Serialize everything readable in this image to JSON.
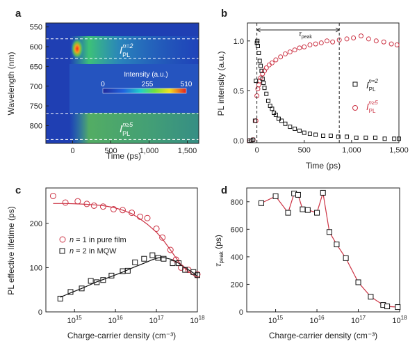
{
  "panels": {
    "a": {
      "label": "a"
    },
    "b": {
      "label": "b"
    },
    "c": {
      "label": "c"
    },
    "d": {
      "label": "d"
    }
  },
  "colors": {
    "red": "#cc3344",
    "black": "#111111",
    "heat_bg": "#1f3fb3"
  },
  "chart_data": [
    {
      "panel": "a",
      "type": "heatmap",
      "xlabel": "Time (ps)",
      "ylabel": "Wavelength (nm)",
      "xlim": [
        -350,
        1650
      ],
      "ylim": [
        540,
        845
      ],
      "x_ticks": [
        0,
        500,
        1000,
        1500
      ],
      "x_tick_labels": [
        "0",
        "500",
        "1,000",
        "1,500"
      ],
      "y_ticks": [
        550,
        600,
        650,
        700,
        750,
        800
      ],
      "y_tick_labels": [
        "550",
        "600",
        "650",
        "700",
        "750",
        "800"
      ],
      "dashed_lines_nm": [
        580,
        630,
        770,
        835
      ],
      "colorbar": {
        "title": "Intensity (a.u.)",
        "min": 0,
        "mid": 255,
        "max": 510,
        "tick_labels": [
          "0",
          "255",
          "510"
        ]
      },
      "band_labels": [
        {
          "main": "I",
          "sub": "PL",
          "sup": "n=2"
        },
        {
          "main": "I",
          "sub": "PL",
          "sup": "n≥5"
        }
      ]
    },
    {
      "panel": "b",
      "type": "scatter",
      "xlabel": "Time (ps)",
      "ylabel": "PL intensity (a.u.)",
      "xlim": [
        -100,
        1500
      ],
      "ylim": [
        -0.02,
        1.18
      ],
      "x_ticks": [
        0,
        500,
        1000,
        1500
      ],
      "x_tick_labels": [
        "0",
        "500",
        "1,000",
        "1,500"
      ],
      "y_ticks": [
        0.0,
        0.5,
        1.0
      ],
      "y_tick_labels": [
        "0.0",
        "0.5",
        "1.0"
      ],
      "tau_peak": {
        "label_main": "τ",
        "label_sub": "peak",
        "start": 0,
        "end": 870
      },
      "series": [
        {
          "name_main": "I",
          "name_sub": "PL",
          "name_sup": "n=2",
          "x": [
            -80,
            -60,
            -40,
            -20,
            -10,
            0,
            5,
            10,
            20,
            30,
            40,
            50,
            60,
            70,
            80,
            100,
            120,
            140,
            160,
            180,
            200,
            230,
            260,
            300,
            350,
            400,
            450,
            500,
            560,
            620,
            700,
            780,
            860,
            950,
            1050,
            1150,
            1250,
            1350,
            1450,
            1500
          ],
          "y": [
            0.0,
            0.0,
            0.01,
            0.2,
            0.6,
            0.98,
            1.0,
            0.95,
            0.88,
            0.8,
            0.75,
            0.7,
            0.62,
            0.58,
            0.53,
            0.47,
            0.4,
            0.35,
            0.32,
            0.28,
            0.26,
            0.22,
            0.2,
            0.17,
            0.14,
            0.12,
            0.1,
            0.08,
            0.07,
            0.06,
            0.05,
            0.05,
            0.04,
            0.04,
            0.03,
            0.03,
            0.03,
            0.02,
            0.02,
            0.02
          ]
        },
        {
          "name_main": "I",
          "name_sub": "PL",
          "name_sup": "n≥5",
          "x": [
            -80,
            -40,
            -10,
            0,
            10,
            20,
            30,
            40,
            60,
            80,
            100,
            130,
            160,
            200,
            250,
            300,
            350,
            400,
            450,
            500,
            560,
            620,
            680,
            740,
            800,
            870,
            950,
            1020,
            1100,
            1180,
            1260,
            1340,
            1420,
            1480
          ],
          "y": [
            0.0,
            0.01,
            0.2,
            0.45,
            0.52,
            0.56,
            0.6,
            0.63,
            0.67,
            0.7,
            0.73,
            0.76,
            0.78,
            0.81,
            0.84,
            0.87,
            0.89,
            0.91,
            0.93,
            0.94,
            0.96,
            0.97,
            0.98,
            1.0,
            0.99,
            1.01,
            1.02,
            1.03,
            1.05,
            1.02,
            1.0,
            0.99,
            0.97,
            0.96
          ]
        }
      ]
    },
    {
      "panel": "c",
      "type": "scatter",
      "xlabel": "Charge-carrier density (cm⁻³)",
      "ylabel": "PL effective lifetime (ps)",
      "xscale": "log",
      "xlim": [
        200000000000000.0,
        1e+18
      ],
      "ylim": [
        0,
        280
      ],
      "x_ticks": [
        1000000000000000.0,
        1e+16,
        1e+17,
        1e+18
      ],
      "x_tick_labels": [
        {
          "base": "10",
          "exp": "15"
        },
        {
          "base": "10",
          "exp": "16"
        },
        {
          "base": "10",
          "exp": "17"
        },
        {
          "base": "10",
          "exp": "18"
        }
      ],
      "y_ticks": [
        0,
        100,
        200
      ],
      "y_tick_labels": [
        "0",
        "100",
        "200"
      ],
      "series": [
        {
          "name_prefix": "n",
          "name_rest": " = 1 in pure film",
          "x": [
            300000000000000.0,
            600000000000000.0,
            1200000000000000.0,
            2000000000000000.0,
            3000000000000000.0,
            5000000000000000.0,
            9000000000000000.0,
            1.5e+16,
            2.5e+16,
            4e+16,
            6e+16,
            1e+17,
            1.4e+17,
            2.2e+17,
            3e+17,
            4e+17,
            6e+17,
            1e+18
          ],
          "y": [
            262,
            247,
            250,
            244,
            240,
            238,
            232,
            230,
            224,
            215,
            212,
            188,
            168,
            140,
            118,
            100,
            95,
            85
          ],
          "fit_y": [
            245,
            245,
            244,
            243,
            242,
            240,
            236,
            230,
            222,
            210,
            198,
            180,
            165,
            140,
            122,
            106,
            92,
            76
          ]
        },
        {
          "name_prefix": "n",
          "name_rest": " = 2 in MQW",
          "x": [
            450000000000000.0,
            800000000000000.0,
            1500000000000000.0,
            2500000000000000.0,
            3500000000000000.0,
            5000000000000000.0,
            8000000000000000.0,
            1.5e+16,
            2e+16,
            3e+16,
            5e+16,
            8e+16,
            1.1e+17,
            1.5e+17,
            2.5e+17,
            3.5e+17,
            5e+17,
            8e+17,
            1e+18
          ],
          "y": [
            30,
            45,
            53,
            70,
            67,
            72,
            82,
            92,
            93,
            112,
            120,
            128,
            122,
            120,
            110,
            110,
            95,
            90,
            83
          ],
          "fit_y": [
            33,
            43,
            53,
            62,
            68,
            73,
            80,
            90,
            95,
            102,
            110,
            118,
            122,
            123,
            118,
            110,
            100,
            88,
            80
          ]
        }
      ]
    },
    {
      "panel": "d",
      "type": "line",
      "xlabel": "Charge-carrier density (cm⁻³)",
      "ylabel_main": "τ",
      "ylabel_sub": "peak",
      "ylabel_unit": " (ps)",
      "xscale": "log",
      "xlim": [
        200000000000000.0,
        1e+18
      ],
      "ylim": [
        0,
        900
      ],
      "x_ticks": [
        1000000000000000.0,
        1e+16,
        1e+17,
        1e+18
      ],
      "x_tick_labels": [
        {
          "base": "10",
          "exp": "15"
        },
        {
          "base": "10",
          "exp": "16"
        },
        {
          "base": "10",
          "exp": "17"
        },
        {
          "base": "10",
          "exp": "18"
        }
      ],
      "y_ticks": [
        0,
        200,
        400,
        600,
        800
      ],
      "y_tick_labels": [
        "0",
        "200",
        "400",
        "600",
        "800"
      ],
      "series": [
        {
          "x": [
            450000000000000.0,
            1000000000000000.0,
            2000000000000000.0,
            2800000000000000.0,
            3500000000000000.0,
            4500000000000000.0,
            6000000000000000.0,
            1e+16,
            1.4e+16,
            2e+16,
            3e+16,
            5e+16,
            1e+17,
            2e+17,
            4e+17,
            5e+17,
            9e+17
          ],
          "y": [
            790,
            840,
            720,
            860,
            850,
            745,
            740,
            720,
            865,
            580,
            490,
            390,
            215,
            110,
            50,
            40,
            35
          ]
        }
      ]
    }
  ]
}
